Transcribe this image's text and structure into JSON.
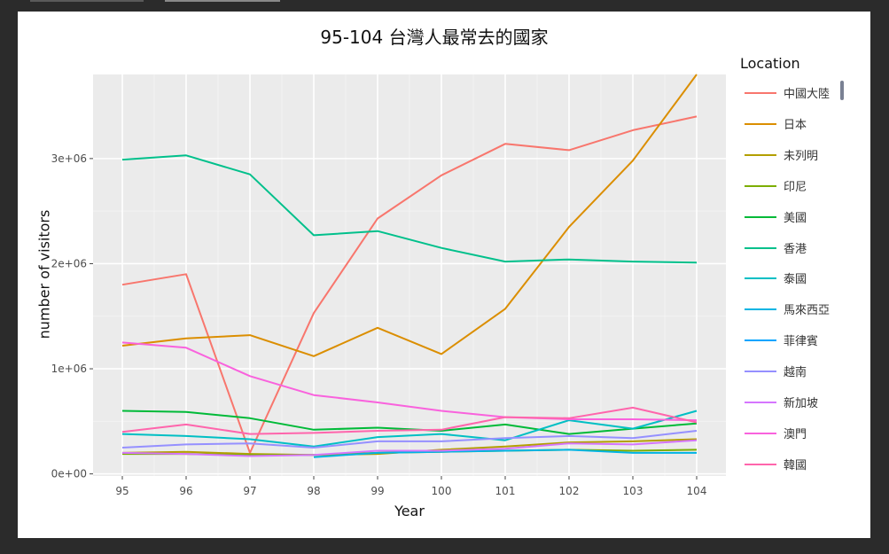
{
  "chart_data": {
    "type": "line",
    "title": "95-104 台灣人最常去的國家",
    "xlabel": "Year",
    "ylabel": "number of visitors",
    "x": [
      95,
      96,
      97,
      98,
      99,
      100,
      101,
      102,
      103,
      104
    ],
    "ylim": [
      -20000,
      3800000
    ],
    "yticks": [
      0,
      1000000,
      2000000,
      3000000
    ],
    "ytick_labels": [
      "0e+00",
      "1e+06",
      "2e+06",
      "3e+06"
    ],
    "grid": true,
    "legend_title": "Location",
    "legend_position": "right",
    "series": [
      {
        "name": "中國大陸",
        "color": "#f8766d",
        "values": [
          1800000,
          1900000,
          200000,
          1530000,
          2430000,
          2840000,
          3140000,
          3080000,
          3270000,
          3400000
        ]
      },
      {
        "name": "日本",
        "color": "#db8e00",
        "values": [
          1220000,
          1290000,
          1320000,
          1120000,
          1390000,
          1140000,
          1570000,
          2350000,
          2980000,
          3800000
        ]
      },
      {
        "name": "未列明",
        "color": "#b39f00",
        "values": [
          200000,
          210000,
          190000,
          180000,
          190000,
          230000,
          260000,
          300000,
          310000,
          330000
        ]
      },
      {
        "name": "印尼",
        "color": "#7cae00",
        "values": [
          190000,
          190000,
          180000,
          180000,
          200000,
          210000,
          220000,
          230000,
          220000,
          230000
        ]
      },
      {
        "name": "美國",
        "color": "#00ba38",
        "values": [
          600000,
          590000,
          530000,
          420000,
          440000,
          410000,
          470000,
          380000,
          430000,
          480000
        ]
      },
      {
        "name": "香港",
        "color": "#00c08b",
        "values": [
          2990000,
          3030000,
          2850000,
          2270000,
          2310000,
          2150000,
          2020000,
          2040000,
          2020000,
          2010000
        ]
      },
      {
        "name": "泰國",
        "color": "#00bfc4",
        "values": [
          380000,
          360000,
          330000,
          260000,
          350000,
          380000,
          320000,
          510000,
          430000,
          600000
        ]
      },
      {
        "name": "馬來西亞",
        "color": "#00b4e3",
        "values": [
          null,
          null,
          null,
          160000,
          200000,
          210000,
          220000,
          230000,
          200000,
          200000
        ]
      },
      {
        "name": "菲律賓",
        "color": "#00a5ff",
        "values": [
          null,
          null,
          null,
          null,
          null,
          null,
          null,
          null,
          null,
          null
        ]
      },
      {
        "name": "越南",
        "color": "#9590ff",
        "values": [
          250000,
          280000,
          290000,
          250000,
          310000,
          310000,
          340000,
          360000,
          340000,
          410000
        ]
      },
      {
        "name": "新加坡",
        "color": "#d575fe",
        "values": [
          200000,
          190000,
          170000,
          180000,
          220000,
          220000,
          240000,
          290000,
          280000,
          320000
        ]
      },
      {
        "name": "澳門",
        "color": "#f962dd",
        "values": [
          1250000,
          1200000,
          930000,
          750000,
          680000,
          600000,
          540000,
          520000,
          520000,
          510000
        ]
      },
      {
        "name": "韓國",
        "color": "#ff65ac",
        "values": [
          400000,
          470000,
          380000,
          390000,
          410000,
          420000,
          540000,
          530000,
          630000,
          490000
        ]
      }
    ]
  }
}
